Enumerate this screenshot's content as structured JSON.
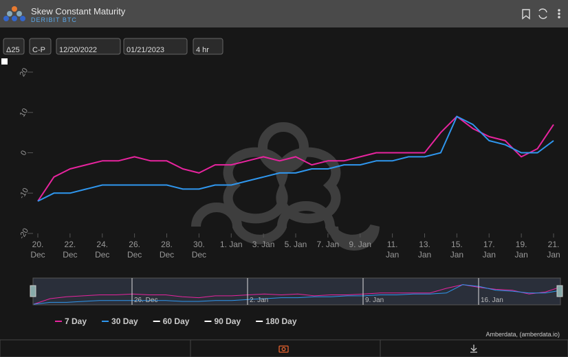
{
  "header": {
    "title": "Skew Constant Maturity",
    "subtitle": "DERIBIT BTC"
  },
  "controls": [
    "Δ25",
    "C-P",
    "12/20/2022",
    "01/21/2023",
    "4 hr"
  ],
  "chart_data": {
    "type": "line",
    "categories": [
      "20. Dec",
      null,
      "22. Dec",
      null,
      "24. Dec",
      null,
      "26. Dec",
      null,
      "28. Dec",
      null,
      "30. Dec",
      null,
      "1. Jan",
      null,
      "3. Jan",
      null,
      "5. Jan",
      null,
      "7. Jan",
      null,
      "9. Jan",
      null,
      "11. Jan",
      null,
      "13. Jan",
      null,
      "15. Jan",
      null,
      "17. Jan",
      null,
      "19. Jan",
      null,
      "21. Jan"
    ],
    "series": [
      {
        "name": "7 Day",
        "color": "#e8249f",
        "values": [
          -12,
          -6,
          -4,
          -3,
          -2,
          -2,
          -1,
          -2,
          -2,
          -4,
          -5,
          -3,
          -3,
          -2,
          -1,
          -2,
          -1,
          -3,
          -2,
          -2,
          -1,
          0,
          0,
          0,
          0,
          5,
          9,
          6,
          4,
          3,
          -1,
          1,
          7
        ]
      },
      {
        "name": "30 Day",
        "color": "#2f97ef",
        "values": [
          -12,
          -10,
          -10,
          -9,
          -8,
          -8,
          -8,
          -8,
          -8,
          -9,
          -9,
          -8,
          -8,
          -7,
          -6,
          -5,
          -5,
          -4,
          -4,
          -3,
          -3,
          -2,
          -2,
          -1,
          -1,
          0,
          9,
          7,
          3,
          2,
          0,
          0,
          3
        ]
      },
      {
        "name": "60 Day",
        "color": "#ffffff",
        "values": [
          null,
          null,
          null,
          null,
          null,
          null,
          null,
          null,
          null,
          null,
          null,
          null,
          null,
          null,
          null,
          null,
          null,
          null,
          null,
          null,
          null,
          null,
          null,
          null,
          null,
          null,
          null,
          null,
          null,
          null,
          null,
          null,
          null
        ]
      },
      {
        "name": "90 Day",
        "color": "#ffffff",
        "values": [
          null,
          null,
          null,
          null,
          null,
          null,
          null,
          null,
          null,
          null,
          null,
          null,
          null,
          null,
          null,
          null,
          null,
          null,
          null,
          null,
          null,
          null,
          null,
          null,
          null,
          null,
          null,
          null,
          null,
          null,
          null,
          null,
          null
        ]
      },
      {
        "name": "180 Day",
        "color": "#ffffff",
        "values": [
          null,
          null,
          null,
          null,
          null,
          null,
          null,
          null,
          null,
          null,
          null,
          null,
          null,
          null,
          null,
          null,
          null,
          null,
          null,
          null,
          null,
          null,
          null,
          null,
          null,
          null,
          null,
          null,
          null,
          null,
          null,
          null,
          null
        ]
      }
    ],
    "ylim": [
      -20,
      20
    ],
    "yticks": [
      -20,
      -10,
      0,
      10,
      20
    ],
    "grid": false,
    "navigator_labels": [
      "26. Dec",
      "2. Jan",
      "9. Jan",
      "16. Jan"
    ],
    "credit": "Amberdata, (amberdata.io)"
  }
}
